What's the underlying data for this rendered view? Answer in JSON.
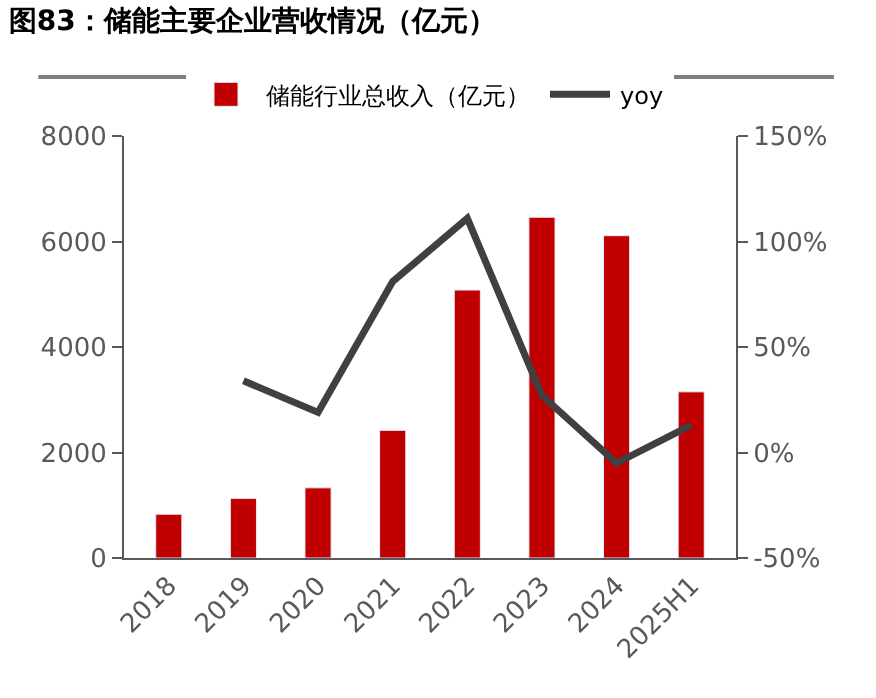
{
  "chart_data": {
    "type": "bar",
    "title": "图83：储能主要企业营收情况（亿元）",
    "categories": [
      "2018",
      "2019",
      "2020",
      "2021",
      "2022",
      "2023",
      "2024",
      "2025H1"
    ],
    "series": [
      {
        "name": "储能行业总收入（亿元）",
        "color": "#c00000",
        "values": [
          830,
          1130,
          1330,
          2420,
          5080,
          6460,
          6110,
          3150
        ]
      },
      {
        "name": "yoy",
        "type": "line",
        "axis": "y2",
        "color": "#404040",
        "values": [
          null,
          34,
          19,
          81,
          111,
          27,
          -5,
          13
        ]
      }
    ],
    "ylim": [
      0,
      8000
    ],
    "yticks": [
      0,
      2000,
      4000,
      6000,
      8000
    ],
    "y2lim": [
      -50,
      150
    ],
    "y2ticks": [
      {
        "value": -50,
        "label": "-50%"
      },
      {
        "value": 0,
        "label": "0%"
      },
      {
        "value": 50,
        "label": "50%"
      },
      {
        "value": 100,
        "label": "100%"
      },
      {
        "value": 150,
        "label": "150%"
      }
    ],
    "grid": false,
    "legend": "top",
    "marker": "none"
  }
}
